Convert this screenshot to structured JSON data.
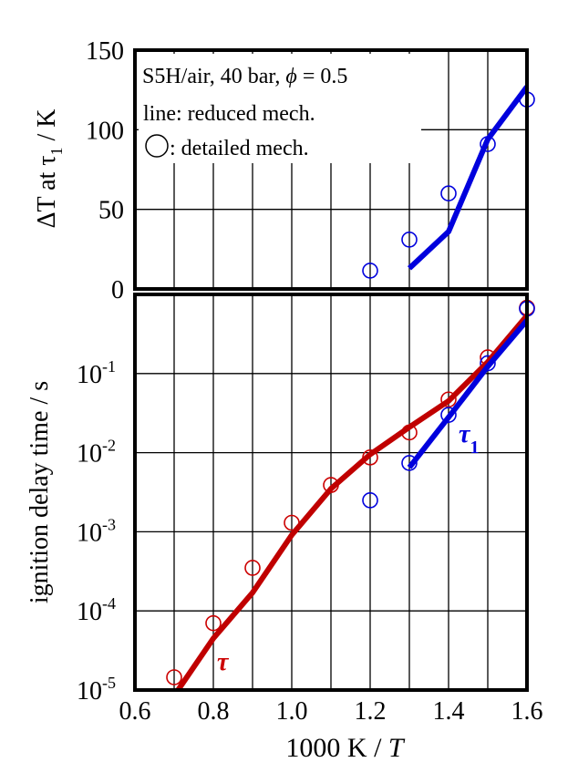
{
  "chart_data": [
    {
      "type": "line",
      "panel": "top",
      "ylabel": {
        "main": "ΔT at τ",
        "sub": "1",
        "unit": " / K"
      },
      "ylim": [
        0,
        150
      ],
      "xlim": [
        0.6,
        1.6
      ],
      "yticks": [
        "0",
        "50",
        "100",
        "150"
      ],
      "grid": true,
      "annotations": [
        "S5H/air, 40 bar, ",
        "ϕ",
        " = 0.5",
        "line: reduced mech.",
        ": detailed mech."
      ],
      "series": [
        {
          "style": "circles",
          "color": "#0000dd",
          "x": [
            1.2,
            1.3,
            1.4,
            1.5,
            1.6
          ],
          "y": [
            11.5,
            31,
            60,
            91,
            119
          ]
        },
        {
          "style": "line",
          "color": "#0000dd",
          "x": [
            1.3,
            1.4,
            1.5,
            1.6
          ],
          "y": [
            13,
            36,
            94,
            127
          ]
        }
      ]
    },
    {
      "type": "line",
      "panel": "bottom",
      "xlabel": {
        "main": "1000 K / ",
        "italic": "T"
      },
      "ylabel": "ignition delay time / s",
      "yscale": "log",
      "ylim": [
        1e-05,
        1
      ],
      "xlim": [
        0.6,
        1.6
      ],
      "xticks": [
        "0.6",
        "0.8",
        "1.0",
        "1.2",
        "1.4",
        "1.6"
      ],
      "yticks": [
        {
          "base": "10",
          "exp": "-5"
        },
        {
          "base": "10",
          "exp": "-4"
        },
        {
          "base": "10",
          "exp": "-3"
        },
        {
          "base": "10",
          "exp": "-2"
        },
        {
          "base": "10",
          "exp": "-1"
        }
      ],
      "grid": true,
      "series": [
        {
          "name": "τ",
          "style": "circles",
          "color": "#cc0000",
          "x": [
            0.7,
            0.8,
            0.9,
            1.0,
            1.1,
            1.2,
            1.3,
            1.4,
            1.5,
            1.6
          ],
          "y": [
            1.45e-05,
            7e-05,
            0.00035,
            0.0013,
            0.0039,
            0.0087,
            0.018,
            0.047,
            0.16,
            0.68
          ]
        },
        {
          "name": "τ",
          "style": "line",
          "color": "#c00000",
          "x": [
            0.71,
            0.8,
            0.9,
            1.0,
            1.1,
            1.2,
            1.3,
            1.4,
            1.5,
            1.6
          ],
          "y": [
            1e-05,
            4.5e-05,
            0.00017,
            0.00091,
            0.0035,
            0.0095,
            0.021,
            0.045,
            0.14,
            0.54
          ]
        },
        {
          "name": "τ1",
          "style": "circles",
          "color": "#0000dd",
          "x": [
            1.2,
            1.3,
            1.4,
            1.5,
            1.6
          ],
          "y": [
            0.0025,
            0.0074,
            0.03,
            0.135,
            0.66
          ]
        },
        {
          "name": "τ1",
          "style": "line",
          "color": "#0000dd",
          "x": [
            1.3,
            1.4,
            1.5,
            1.6
          ],
          "y": [
            0.0065,
            0.028,
            0.123,
            0.47
          ]
        }
      ],
      "labels": {
        "tau": "τ",
        "tau1_main": "τ",
        "tau1_sub": "1"
      }
    }
  ]
}
